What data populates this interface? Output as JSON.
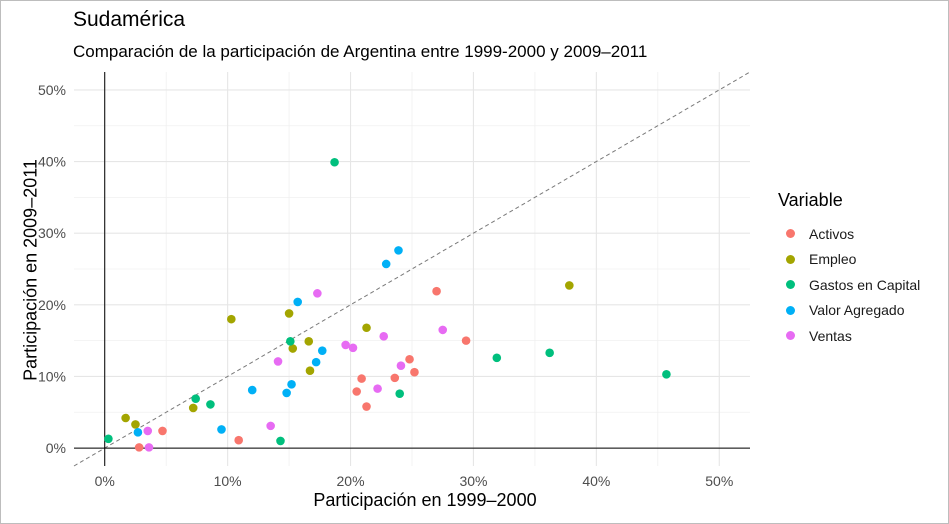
{
  "chart_data": {
    "type": "scatter",
    "title": "Sudamérica",
    "subtitle": "Comparación de la participación de Argentina entre 1999-2000 y 2009–2011",
    "xlabel": "Participación en 1999–2000",
    "ylabel": "Participación en 2009–2011",
    "xlim": [
      -2.5,
      52.5
    ],
    "ylim": [
      -2.5,
      52.5
    ],
    "x_ticks": [
      0,
      10,
      20,
      30,
      40,
      50
    ],
    "y_ticks": [
      0,
      10,
      20,
      30,
      40,
      50
    ],
    "x_tick_labels": [
      "0%",
      "10%",
      "20%",
      "30%",
      "40%",
      "50%"
    ],
    "y_tick_labels": [
      "0%",
      "10%",
      "20%",
      "30%",
      "40%",
      "50%"
    ],
    "grid": true,
    "reference_line": "y = x (dashed)",
    "legend_title": "Variable",
    "legend_position": "right",
    "series": [
      {
        "name": "Activos",
        "color": "#F8766D",
        "points": [
          [
            2.8,
            0.1
          ],
          [
            4.7,
            2.4
          ],
          [
            10.9,
            1.1
          ],
          [
            20.5,
            7.9
          ],
          [
            20.9,
            9.7
          ],
          [
            21.3,
            5.8
          ],
          [
            23.6,
            9.8
          ],
          [
            24.8,
            12.4
          ],
          [
            25.2,
            10.6
          ],
          [
            27,
            21.9
          ],
          [
            29.4,
            15
          ]
        ]
      },
      {
        "name": "Empleo",
        "color": "#A3A500",
        "points": [
          [
            1.7,
            4.2
          ],
          [
            2.5,
            3.3
          ],
          [
            7.2,
            5.6
          ],
          [
            10.3,
            18
          ],
          [
            15,
            18.8
          ],
          [
            15.3,
            13.9
          ],
          [
            16.6,
            14.9
          ],
          [
            16.7,
            10.8
          ],
          [
            21.3,
            16.8
          ],
          [
            37.8,
            22.7
          ]
        ]
      },
      {
        "name": "Gastos en Capital",
        "color": "#00BF7D",
        "points": [
          [
            0.3,
            1.3
          ],
          [
            7.4,
            6.9
          ],
          [
            8.6,
            6.1
          ],
          [
            14.3,
            1
          ],
          [
            15.1,
            14.9
          ],
          [
            18.7,
            39.9
          ],
          [
            24,
            7.6
          ],
          [
            31.9,
            12.6
          ],
          [
            36.2,
            13.3
          ],
          [
            45.7,
            10.3
          ]
        ]
      },
      {
        "name": "Valor Agregado",
        "color": "#00B0F6",
        "points": [
          [
            2.7,
            2.2
          ],
          [
            9.5,
            2.6
          ],
          [
            12,
            8.1
          ],
          [
            14.8,
            7.7
          ],
          [
            15.2,
            8.9
          ],
          [
            15.7,
            20.4
          ],
          [
            17.2,
            12
          ],
          [
            17.7,
            13.6
          ],
          [
            22.9,
            25.7
          ],
          [
            23.9,
            27.6
          ]
        ]
      },
      {
        "name": "Ventas",
        "color": "#E76BF3",
        "points": [
          [
            3.5,
            2.4
          ],
          [
            3.6,
            0.1
          ],
          [
            13.5,
            3.1
          ],
          [
            14.1,
            12.1
          ],
          [
            17.3,
            21.6
          ],
          [
            19.6,
            14.4
          ],
          [
            20.2,
            14
          ],
          [
            22.2,
            8.3
          ],
          [
            22.7,
            15.6
          ],
          [
            24.1,
            11.5
          ],
          [
            27.5,
            16.5
          ]
        ]
      }
    ]
  }
}
